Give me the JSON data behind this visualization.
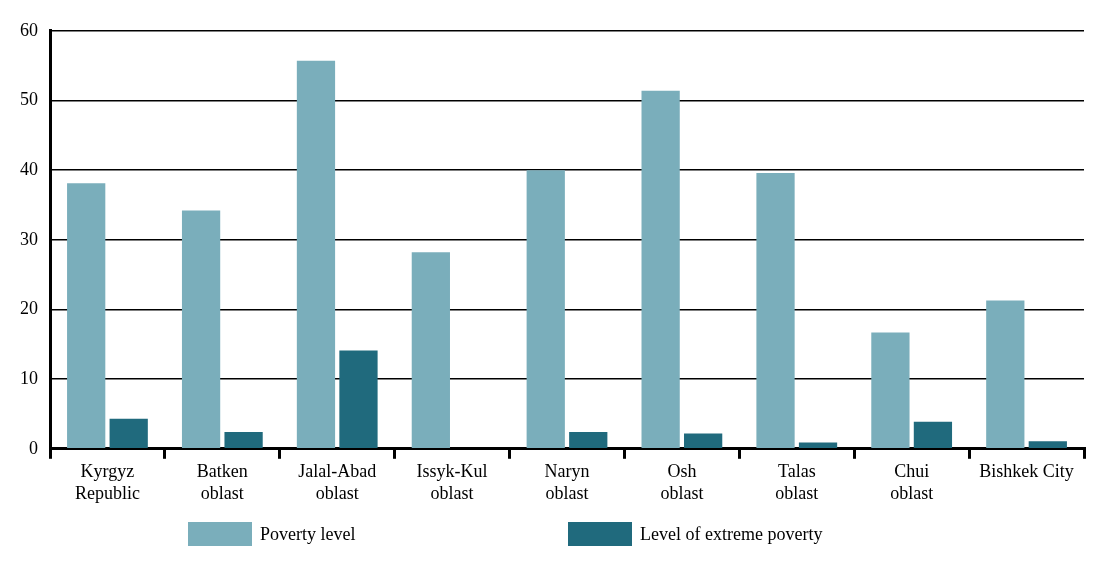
{
  "chart_data": {
    "type": "bar",
    "categories": [
      "Kyrgyz\nRepublic",
      "Batken\noblast",
      "Jalal-Abad\noblast",
      "Issyk-Kul\noblast",
      "Naryn\noblast",
      "Osh\noblast",
      "Talas\noblast",
      "Chui\noblast",
      "Bishkek City"
    ],
    "series": [
      {
        "name": "Poverty level",
        "color": "#7aaebb",
        "values": [
          38.1,
          34.2,
          55.7,
          28.2,
          40.0,
          51.4,
          39.6,
          16.7,
          21.3
        ]
      },
      {
        "name": "Level of extreme poverty",
        "color": "#206a7d",
        "values": [
          4.3,
          2.4,
          14.1,
          null,
          2.4,
          2.2,
          0.9,
          3.9,
          1.1
        ]
      }
    ],
    "ylim": [
      0,
      60
    ],
    "yticks": [
      0,
      10,
      20,
      30,
      40,
      50,
      60
    ],
    "grid": "y",
    "legend": "bottom"
  }
}
